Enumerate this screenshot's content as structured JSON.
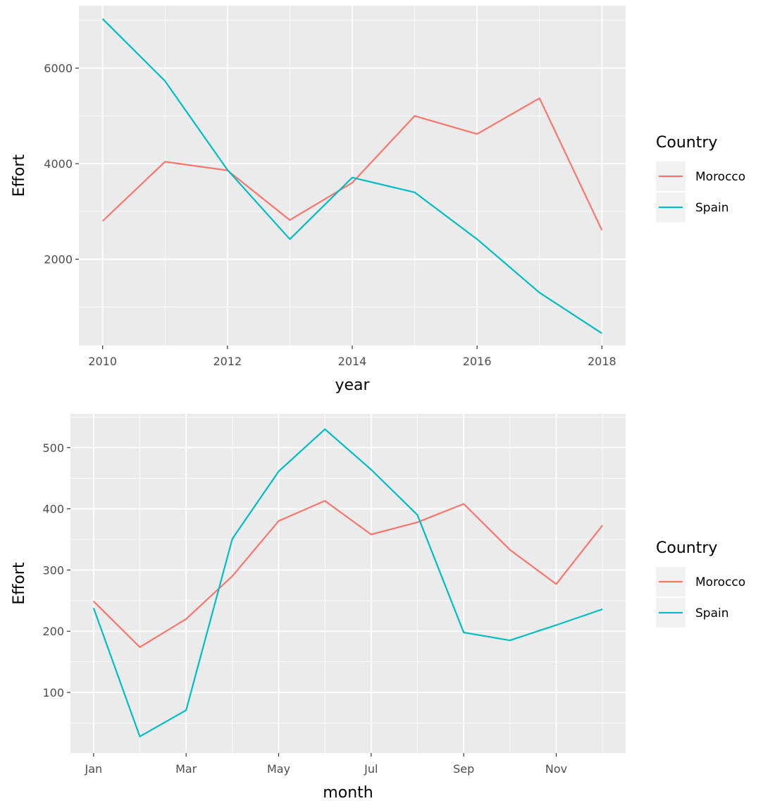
{
  "chart_data": [
    {
      "type": "line",
      "title": "",
      "xlabel": "year",
      "ylabel": "Effort",
      "x": [
        2010,
        2011,
        2012,
        2013,
        2014,
        2015,
        2016,
        2017,
        2018
      ],
      "xlim": [
        2009.62,
        2018.38
      ],
      "ylim": [
        195,
        7307
      ],
      "x_ticks": [
        2010,
        2012,
        2014,
        2016,
        2018
      ],
      "x_tick_labels": [
        "2010",
        "2012",
        "2014",
        "2016",
        "2018"
      ],
      "y_ticks": [
        2000,
        4000,
        6000
      ],
      "y_tick_labels": [
        "2000",
        "4000",
        "6000"
      ],
      "grid": true,
      "legend": {
        "title": "Country",
        "position": "right"
      },
      "series": [
        {
          "name": "Morocco",
          "color": "#F8766D",
          "values": [
            2800,
            4040,
            3860,
            2820,
            3600,
            5000,
            4620,
            5370,
            2610
          ]
        },
        {
          "name": "Spain",
          "color": "#00BFC4",
          "values": [
            7030,
            5730,
            3870,
            2420,
            3710,
            3400,
            2420,
            1300,
            450
          ]
        }
      ]
    },
    {
      "type": "line",
      "title": "",
      "xlabel": "month",
      "ylabel": "Effort",
      "x": [
        1,
        2,
        3,
        4,
        5,
        6,
        7,
        8,
        9,
        10,
        11,
        12
      ],
      "xlim": [
        0.5,
        12.5
      ],
      "ylim": [
        1,
        555
      ],
      "x_ticks": [
        1,
        3,
        5,
        7,
        9,
        11
      ],
      "x_tick_labels": [
        "Jan",
        "Mar",
        "May",
        "Jul",
        "Sep",
        "Nov"
      ],
      "y_ticks": [
        100,
        200,
        300,
        400,
        500
      ],
      "y_tick_labels": [
        "100",
        "200",
        "300",
        "400",
        "500"
      ],
      "grid": true,
      "legend": {
        "title": "Country",
        "position": "right"
      },
      "series": [
        {
          "name": "Morocco",
          "color": "#F8766D",
          "values": [
            249,
            174,
            220,
            290,
            380,
            413,
            358,
            378,
            408,
            333,
            277,
            373
          ]
        },
        {
          "name": "Spain",
          "color": "#00BFC4",
          "values": [
            238,
            28,
            71,
            351,
            461,
            530,
            464,
            390,
            198,
            185,
            210,
            236
          ]
        }
      ]
    }
  ]
}
